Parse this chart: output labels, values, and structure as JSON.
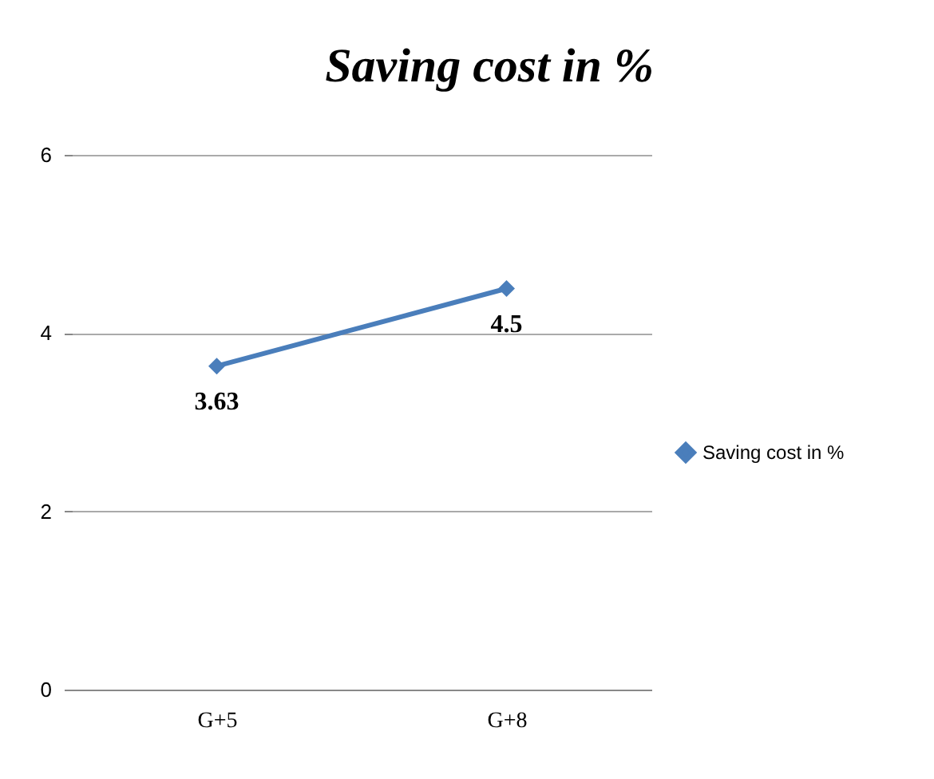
{
  "chart_data": {
    "type": "line",
    "title": "Saving cost in %",
    "categories": [
      "G+5",
      "G+8"
    ],
    "series": [
      {
        "name": "Saving cost in %",
        "color": "#4a7ebb",
        "values": [
          3.63,
          4.5
        ]
      }
    ],
    "ylim": [
      0,
      6
    ],
    "yticks": [
      0,
      2,
      4,
      6
    ],
    "grid": "y",
    "legend": "right",
    "marker": "diamond",
    "data_labels": true
  }
}
